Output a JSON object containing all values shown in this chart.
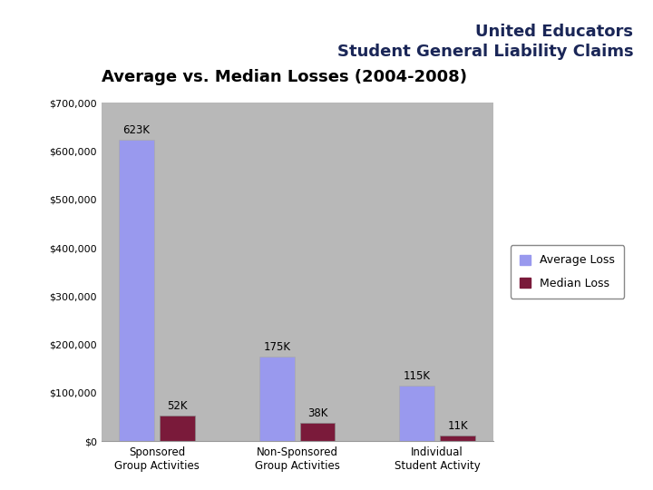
{
  "title_line1": "United Educators",
  "title_line2": "Student General Liability Claims",
  "subtitle": "Average vs. Median Losses (2004-2008)",
  "categories": [
    "Sponsored\nGroup Activities",
    "Non-Sponsored\nGroup Activities",
    "Individual\nStudent Activity"
  ],
  "average_loss": [
    623000,
    175000,
    115000
  ],
  "median_loss": [
    52000,
    38000,
    11000
  ],
  "average_labels": [
    "623K",
    "175K",
    "115K"
  ],
  "median_labels": [
    "52K",
    "38K",
    "11K"
  ],
  "avg_color": "#9999ee",
  "med_color": "#7a1a3a",
  "plot_bg_color": "#b8b8b8",
  "fig_bg_color": "#ffffff",
  "gold_color": "#e8c800",
  "title_color": "#1a2657",
  "ylim": [
    0,
    700000
  ],
  "yticks": [
    0,
    100000,
    200000,
    300000,
    400000,
    500000,
    600000,
    700000
  ],
  "ytick_labels": [
    "$0",
    "$100,000",
    "$200,000",
    "$300,000",
    "$400,000",
    "$500,000",
    "$600,000",
    "$700,000"
  ],
  "legend_labels": [
    "Average Loss",
    "Median Loss"
  ]
}
